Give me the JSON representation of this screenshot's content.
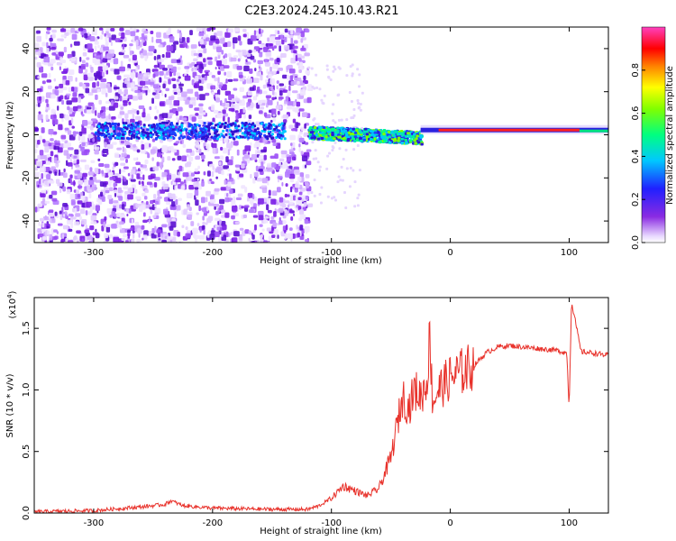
{
  "title": "C2E3.2024.245.10.43.R21",
  "chart_data": [
    {
      "type": "heatmap",
      "xlabel": "Height of straight line (km)",
      "ylabel": "Frequency (Hz)",
      "xlim": [
        -350,
        133
      ],
      "ylim": [
        -50,
        50
      ],
      "xticks": [
        -300,
        -200,
        -100,
        0,
        100
      ],
      "yticks": [
        -40,
        -20,
        0,
        20,
        40
      ],
      "colorbar": {
        "label": "Normalized spectral amplitude",
        "range": [
          0.0,
          1.0
        ],
        "ticks": [
          0.0,
          0.2,
          0.4,
          0.6,
          0.8
        ],
        "tick_labels": [
          "0.0",
          "0.2",
          "0.4",
          "0.6",
          "0.8"
        ],
        "colormap": "rainbow (white → violet → blue → cyan → green → yellow → red → magenta)"
      },
      "features": {
        "noise_region_x": [
          -350,
          -120
        ],
        "coherent_signal_x": [
          -120,
          -25
        ],
        "carrier_line_x": [
          -25,
          133
        ],
        "carrier_frequency_hz": 2.0
      }
    },
    {
      "type": "line",
      "xlabel": "Height of straight line (km)",
      "ylabel": "SNR (10 * v/v)",
      "y_multiplier_label": "(x10",
      "y_multiplier_exp": "4",
      "y_multiplier_close": ")",
      "xlim": [
        -350,
        133
      ],
      "ylim": [
        0,
        1.75
      ],
      "xticks": [
        -300,
        -200,
        -100,
        0,
        100
      ],
      "yticks": [
        0.0,
        0.5,
        1.0,
        1.5
      ],
      "ytick_labels": [
        "0.0",
        "0.5",
        "1.0",
        "1.5"
      ],
      "color": "#e8312a",
      "series": [
        {
          "x": [
            -350,
            -300,
            -260,
            -240,
            -235,
            -225,
            -200,
            -150,
            -120,
            -110,
            -100,
            -90,
            -80,
            -70,
            -60,
            -50,
            -45,
            -40,
            -35,
            -30,
            -25,
            -20,
            -17,
            -15,
            -10,
            -5,
            0,
            10,
            20,
            30,
            40,
            50,
            60,
            70,
            80,
            90,
            98,
            100,
            102,
            110,
            120,
            133
          ],
          "y": [
            0.01,
            0.02,
            0.05,
            0.07,
            0.1,
            0.06,
            0.04,
            0.03,
            0.03,
            0.06,
            0.12,
            0.22,
            0.18,
            0.14,
            0.2,
            0.45,
            0.7,
            0.95,
            0.85,
            1.0,
            0.95,
            1.05,
            1.45,
            0.9,
            1.0,
            1.05,
            1.1,
            1.15,
            1.2,
            1.3,
            1.35,
            1.36,
            1.35,
            1.34,
            1.33,
            1.32,
            1.3,
            0.85,
            1.72,
            1.31,
            1.3,
            1.28
          ]
        }
      ]
    }
  ]
}
